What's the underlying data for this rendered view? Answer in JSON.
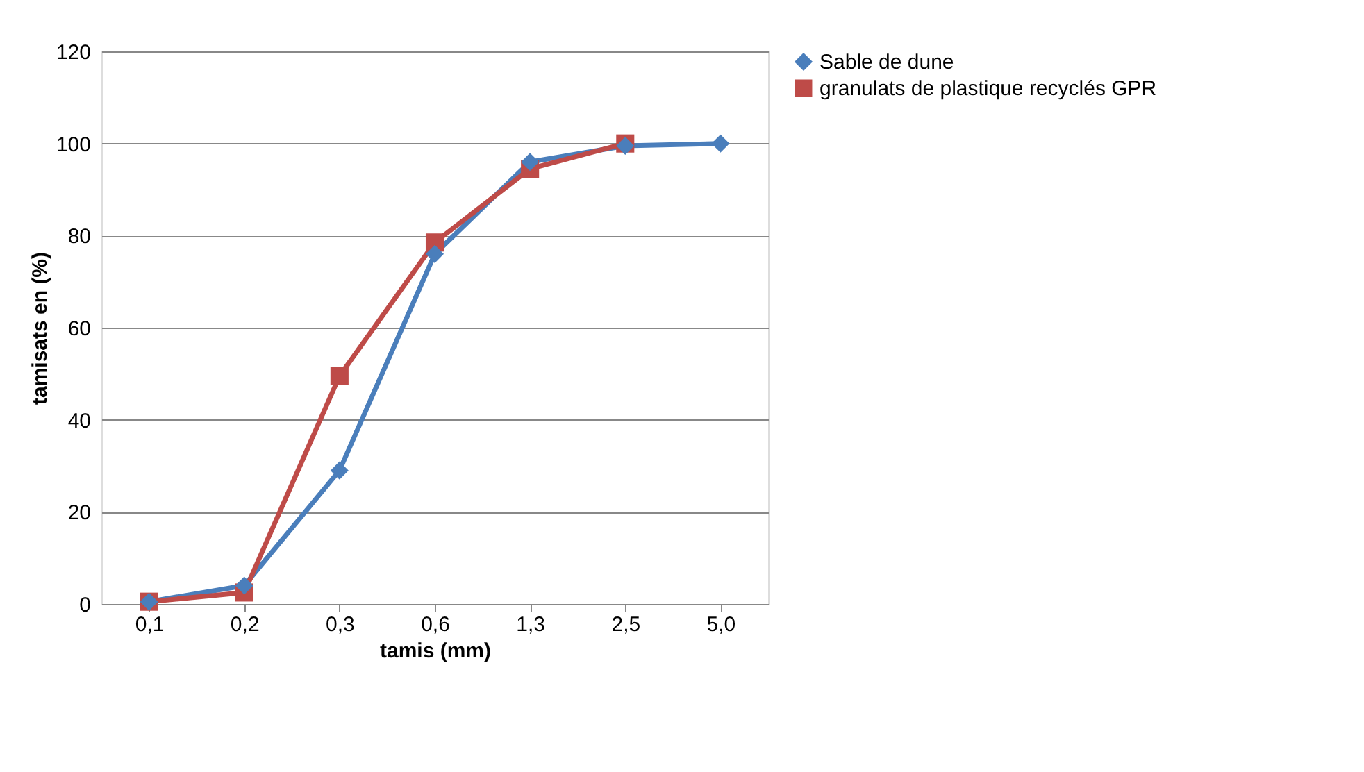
{
  "chart_data": {
    "type": "line",
    "xlabel": "tamis (mm)",
    "ylabel": "tamisats en (%)",
    "categories": [
      "0,1",
      "0,2",
      "0,3",
      "0,6",
      "1,3",
      "2,5",
      "5,0"
    ],
    "series": [
      {
        "name": "Sable de dune",
        "color": "#4a7ebb",
        "marker": "diamond",
        "values": [
          0.5,
          4,
          29,
          76,
          96,
          99.5,
          100
        ]
      },
      {
        "name": "granulats de plastique recyclés GPR",
        "color": "#be4b48",
        "marker": "square",
        "values": [
          0.5,
          2.5,
          49.5,
          78.5,
          94.5,
          100,
          null
        ]
      }
    ],
    "ylim": [
      0,
      120
    ],
    "yticks": [
      0,
      20,
      40,
      60,
      80,
      100,
      120
    ],
    "grid": "y",
    "legend": "right",
    "line_style": "solid"
  }
}
